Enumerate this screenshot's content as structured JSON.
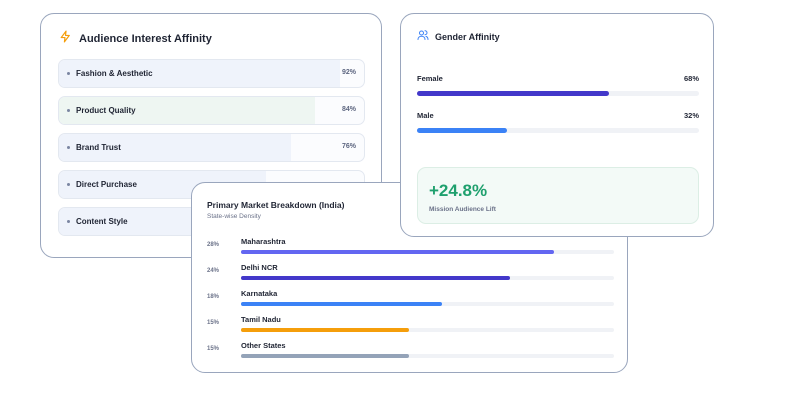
{
  "interest": {
    "title": "Audience Interest Affinity",
    "icon": "lightning-icon",
    "items": [
      {
        "label": "Fashion & Aesthetic",
        "pct_text": "92%",
        "value": 0.92,
        "fill": "#eff3fb"
      },
      {
        "label": "Product Quality",
        "pct_text": "84%",
        "value": 0.84,
        "fill": "#eef6f2"
      },
      {
        "label": "Brand Trust",
        "pct_text": "76%",
        "value": 0.76,
        "fill": "#eff3fb"
      },
      {
        "label": "Direct Purchase",
        "pct_text": "",
        "value": 0.68,
        "fill": "#eff3fb"
      },
      {
        "label": "Content Style",
        "pct_text": "",
        "value": 0.6,
        "fill": "#eff3fb"
      }
    ]
  },
  "gender": {
    "title": "Gender Affinity",
    "icon": "users-icon",
    "items": [
      {
        "label": "Female",
        "pct_text": "68%",
        "value": 0.68,
        "color": "#4338ca"
      },
      {
        "label": "Male",
        "pct_text": "32%",
        "value": 0.32,
        "color": "#3b82f6"
      }
    ],
    "lift_value": "+24.8%",
    "lift_label": "Mission Audience Lift"
  },
  "market": {
    "title": "Primary Market Breakdown (India)",
    "subtitle": "State-wise Density",
    "rows": [
      {
        "pct_text": "28%",
        "name": "Maharashtra",
        "value": 0.84,
        "color": "#6366f1"
      },
      {
        "pct_text": "24%",
        "name": "Delhi NCR",
        "value": 0.72,
        "color": "#4338ca"
      },
      {
        "pct_text": "18%",
        "name": "Karnataka",
        "value": 0.54,
        "color": "#3b82f6"
      },
      {
        "pct_text": "15%",
        "name": "Tamil Nadu",
        "value": 0.45,
        "color": "#f59e0b"
      },
      {
        "pct_text": "15%",
        "name": "Other States",
        "value": 0.45,
        "color": "#94a3b8"
      }
    ]
  }
}
